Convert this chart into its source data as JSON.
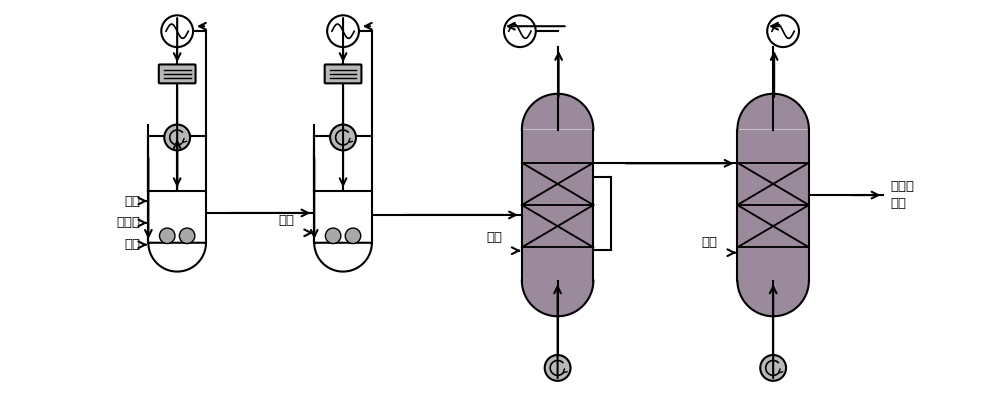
{
  "bg_color": "#ffffff",
  "line_color": "#000000",
  "reactor_bg": "#9b8a9b",
  "text_labels_left": [
    "氢气",
    "催化剑",
    "丙烯"
  ],
  "text_h2_r2": "氢气",
  "text_h2_r3": "氢气",
  "text_h2_r4": "氢气",
  "text_product": "聚丙烯\n粉料"
}
